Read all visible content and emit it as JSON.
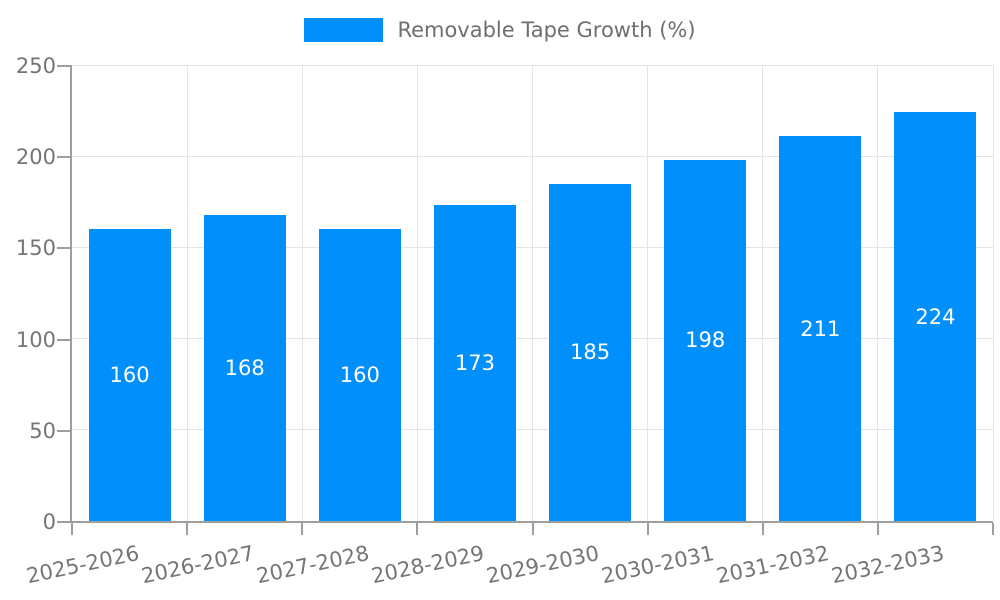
{
  "chart_data": {
    "type": "bar",
    "title": "Removable Tape Growth (%)",
    "categories": [
      "2025-2026",
      "2026-2027",
      "2027-2028",
      "2028-2029",
      "2029-2030",
      "2030-2031",
      "2031-2032",
      "2032-2033"
    ],
    "series": [
      {
        "name": "Removable Tape Growth (%)",
        "values": [
          160,
          168,
          160,
          173,
          185,
          198,
          211,
          224
        ]
      }
    ],
    "data_labels": [
      "160",
      "168",
      "160",
      "173",
      "185",
      "198",
      "211",
      "224"
    ],
    "xlabel": "",
    "ylabel": "",
    "ylim": [
      0,
      250
    ],
    "yticks": [
      0,
      50,
      100,
      150,
      200,
      250
    ],
    "grid": "both",
    "legend_position": "top",
    "x_label_rotation_deg": -12,
    "colors": {
      "bar": "#008ffb",
      "data_label": "#ffffff",
      "axis": "#9e9e9e",
      "grid": "#e4e4e4",
      "tick_text": "#757575",
      "legend_text": "#6f6f6f",
      "background": "#ffffff"
    }
  }
}
